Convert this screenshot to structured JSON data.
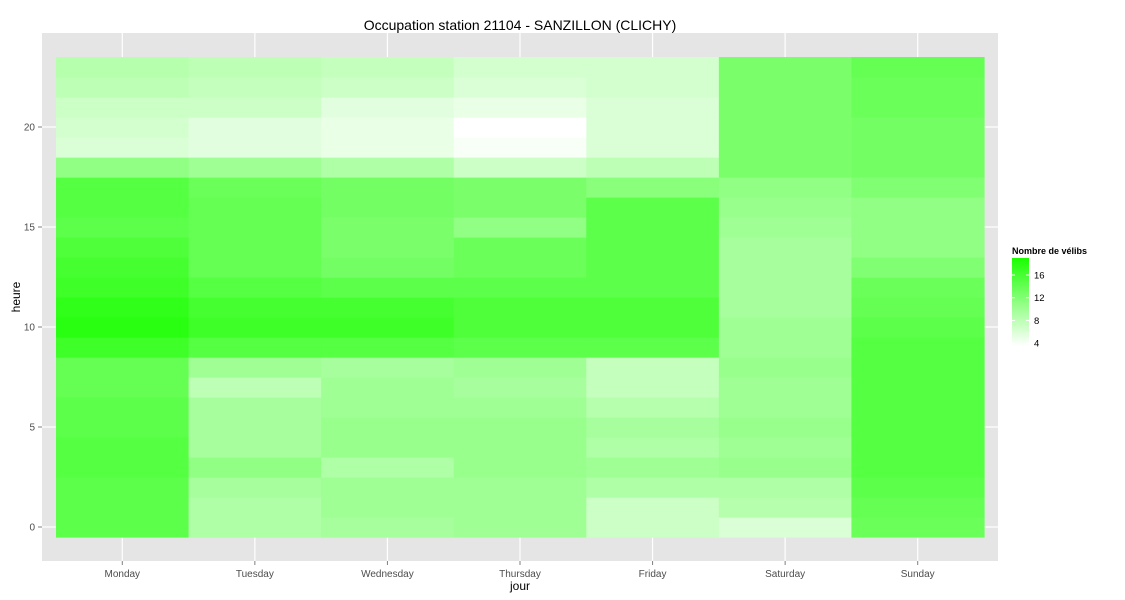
{
  "chart_data": {
    "type": "heatmap",
    "title": "Occupation station 21104 - SANZILLON (CLICHY)",
    "xlabel": "jour",
    "ylabel": "heure",
    "x_categories": [
      "Monday",
      "Tuesday",
      "Wednesday",
      "Thursday",
      "Friday",
      "Saturday",
      "Sunday"
    ],
    "y_values": [
      0,
      1,
      2,
      3,
      4,
      5,
      6,
      7,
      8,
      9,
      10,
      11,
      12,
      13,
      14,
      15,
      16,
      17,
      18,
      19,
      20,
      21,
      22,
      23
    ],
    "y_ticks": [
      0,
      5,
      10,
      15,
      20
    ],
    "ylim": [
      -0.5,
      23.5
    ],
    "grid": true,
    "legend_position": "right",
    "legend": {
      "title": "Nombre de vélibs",
      "ticks": [
        4,
        8,
        12,
        16
      ],
      "range": [
        3.5,
        19
      ],
      "low_color": "#ffffff",
      "high_color": "#1aff00"
    },
    "values": [
      [
        14.5,
        9,
        9.5,
        10,
        7,
        6,
        13.5
      ],
      [
        14.5,
        9,
        10,
        10,
        7,
        8.5,
        14
      ],
      [
        14.5,
        9.5,
        10,
        10,
        9,
        9,
        14.5
      ],
      [
        15,
        11,
        9,
        10.5,
        10,
        10.5,
        15
      ],
      [
        15,
        9.5,
        10.5,
        10.5,
        9,
        10,
        15
      ],
      [
        14.5,
        9.5,
        10.5,
        10.5,
        9.5,
        10.5,
        15
      ],
      [
        14.5,
        9.5,
        10,
        10,
        8.5,
        10,
        15
      ],
      [
        14,
        8,
        10,
        9.5,
        7.5,
        10,
        15
      ],
      [
        14,
        10,
        9.5,
        10,
        7.5,
        10.5,
        15
      ],
      [
        16.5,
        15,
        15,
        14.5,
        14.5,
        10,
        15
      ],
      [
        18,
        16.5,
        16.5,
        15.5,
        15.5,
        10,
        14.5
      ],
      [
        17.5,
        16,
        16,
        15.5,
        15.5,
        9.5,
        14
      ],
      [
        16.5,
        15,
        14.5,
        14.5,
        14.5,
        9.5,
        13.5
      ],
      [
        16,
        14,
        13,
        13.5,
        14.5,
        9.5,
        12
      ],
      [
        15.5,
        14,
        12.5,
        13.5,
        14.5,
        9.5,
        11
      ],
      [
        14.5,
        14,
        12.5,
        11,
        14.5,
        10,
        11
      ],
      [
        15,
        14,
        13,
        12.5,
        14.5,
        10.5,
        11
      ],
      [
        15,
        13.5,
        13,
        12.5,
        11.5,
        11,
        12
      ],
      [
        11,
        10,
        9,
        7,
        8,
        12.5,
        13
      ],
      [
        6,
        5.5,
        5,
        4,
        6,
        12.5,
        13
      ],
      [
        6.5,
        5.5,
        5,
        3.5,
        6,
        12.5,
        13
      ],
      [
        7,
        7,
        5.5,
        5,
        6,
        12.5,
        13.5
      ],
      [
        8,
        7.5,
        7,
        6,
        6.5,
        12.5,
        13.5
      ],
      [
        8.5,
        8,
        7.5,
        6.5,
        6.5,
        12.5,
        14
      ]
    ]
  }
}
